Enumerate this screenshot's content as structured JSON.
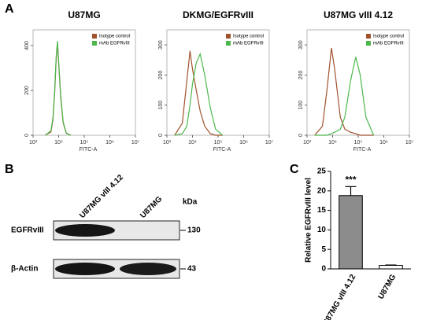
{
  "panels": [
    "A",
    "B",
    "C"
  ],
  "blot": {
    "lanes": [
      "U87MG vIII 4.12",
      "U87MG"
    ],
    "unit": "kDa",
    "rows": [
      {
        "name": "EGFRvIII",
        "marker": "130"
      },
      {
        "name": "β-Actin",
        "marker": "43"
      }
    ]
  },
  "chart_data": [
    {
      "type": "line",
      "title": "U87MG",
      "xlabel": "FITC-A",
      "xscale": "log",
      "xlim": [
        1000,
        10000000
      ],
      "xticks": [
        {
          "value": 1000,
          "label": "10³"
        },
        {
          "value": 10000,
          "label": "10⁴"
        },
        {
          "value": 100000,
          "label": "10⁵"
        },
        {
          "value": 1000000,
          "label": "10⁶"
        },
        {
          "value": 10000000,
          "label": "10⁷"
        }
      ],
      "ylim": [
        0,
        470
      ],
      "yticks": [
        0,
        200,
        400
      ],
      "legend": "upper right",
      "x": [
        3000,
        5000,
        6000,
        7000,
        8000,
        9000,
        10000,
        12000,
        15000,
        20000,
        30000
      ],
      "series": [
        {
          "name": "Isotype control",
          "color": "#a0522d",
          "values": [
            0,
            15,
            70,
            190,
            340,
            410,
            320,
            170,
            55,
            8,
            0
          ]
        },
        {
          "name": "mAb EGFRvIII",
          "color": "#4cb84c",
          "values": [
            0,
            20,
            80,
            200,
            350,
            420,
            330,
            180,
            60,
            10,
            0
          ]
        }
      ]
    },
    {
      "type": "line",
      "title": "DKMG/EGFRvIII",
      "xlabel": "FITC-A",
      "xscale": "log",
      "xlim": [
        1000,
        10000000
      ],
      "xticks": [
        {
          "value": 1000,
          "label": "10³"
        },
        {
          "value": 10000,
          "label": "10⁴"
        },
        {
          "value": 100000,
          "label": "10⁵"
        },
        {
          "value": 1000000,
          "label": "10⁶"
        },
        {
          "value": 10000000,
          "label": "10⁷"
        }
      ],
      "ylim": [
        0,
        350
      ],
      "yticks": [
        0,
        100,
        200,
        300
      ],
      "legend": "upper right",
      "x": [
        2000,
        4000,
        6000,
        8000,
        10000,
        14000,
        20000,
        30000,
        50000,
        80000,
        150000
      ],
      "series": [
        {
          "name": "Isotype control",
          "color": "#a0522d",
          "values": [
            0,
            40,
            180,
            280,
            220,
            150,
            80,
            30,
            5,
            0,
            0
          ]
        },
        {
          "name": "mAb EGFRvIII",
          "color": "#4cb84c",
          "values": [
            0,
            5,
            30,
            100,
            170,
            240,
            270,
            200,
            90,
            20,
            0
          ]
        }
      ]
    },
    {
      "type": "line",
      "title": "U87MG vIII 4.12",
      "xlabel": "FITC-A",
      "xscale": "log",
      "xlim": [
        1000,
        10000000
      ],
      "xticks": [
        {
          "value": 1000,
          "label": "10³"
        },
        {
          "value": 10000,
          "label": "10⁴"
        },
        {
          "value": 100000,
          "label": "10⁵"
        },
        {
          "value": 1000000,
          "label": "10⁶"
        },
        {
          "value": 10000000,
          "label": "10⁷"
        }
      ],
      "ylim": [
        0,
        350
      ],
      "yticks": [
        0,
        100,
        200,
        300
      ],
      "legend": "upper right",
      "x": [
        2000,
        4000,
        6000,
        9000,
        12000,
        20000,
        30000,
        50000,
        80000,
        120000,
        200000,
        400000
      ],
      "series": [
        {
          "name": "Isotype control",
          "color": "#a0522d",
          "values": [
            0,
            30,
            150,
            290,
            220,
            60,
            20,
            10,
            5,
            0,
            0,
            0
          ]
        },
        {
          "name": "mAb EGFRvIII",
          "color": "#4cb84c",
          "values": [
            0,
            0,
            0,
            5,
            10,
            20,
            60,
            180,
            260,
            200,
            60,
            0
          ]
        }
      ]
    },
    {
      "type": "bar",
      "ylabel": "Relative EGFRvIII level",
      "categories": [
        "U87MG vIII 4.12",
        "U87MG"
      ],
      "values": [
        18.8,
        0.9
      ],
      "errors": [
        2.3,
        0.1
      ],
      "colors": [
        "#8c8c8c",
        "#ffffff"
      ],
      "annotations": [
        "***",
        null
      ],
      "ylim": [
        0,
        25
      ],
      "yticks": [
        0,
        5,
        10,
        15,
        20,
        25
      ]
    }
  ]
}
